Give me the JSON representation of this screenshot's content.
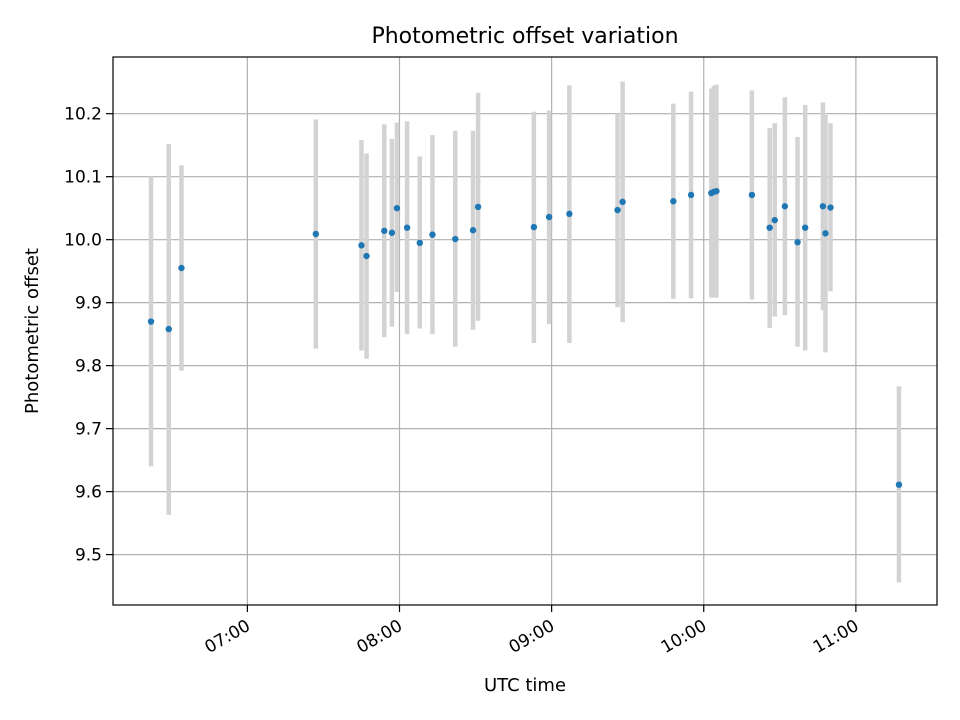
{
  "chart_data": {
    "type": "scatter",
    "title": "Photometric offset variation",
    "xlabel": "UTC time",
    "ylabel": "Photometric offset",
    "x_unit": "UTC time (HH:MM)",
    "xlim": [
      "06:07",
      "11:32"
    ],
    "ylim": [
      9.42,
      10.29
    ],
    "grid": true,
    "x_ticks": [
      "07:00",
      "08:00",
      "09:00",
      "10:00",
      "11:00"
    ],
    "y_ticks": [
      "9.5",
      "9.6",
      "9.7",
      "9.8",
      "9.9",
      "10.0",
      "10.1",
      "10.2"
    ],
    "colors": {
      "points": "#1f77b4",
      "errorbars": "#d3d3d3",
      "grid": "#b0b0b0"
    },
    "points": [
      {
        "x": "06:22",
        "y": 9.87,
        "ylow": 9.64,
        "yhigh": 10.1
      },
      {
        "x": "06:29",
        "y": 9.858,
        "ylow": 9.563,
        "yhigh": 10.152
      },
      {
        "x": "06:34",
        "y": 9.955,
        "ylow": 9.792,
        "yhigh": 10.118
      },
      {
        "x": "07:27",
        "y": 10.009,
        "ylow": 9.827,
        "yhigh": 10.191
      },
      {
        "x": "07:45",
        "y": 9.991,
        "ylow": 9.824,
        "yhigh": 10.158
      },
      {
        "x": "07:47",
        "y": 9.974,
        "ylow": 9.811,
        "yhigh": 10.137
      },
      {
        "x": "07:54",
        "y": 10.014,
        "ylow": 9.845,
        "yhigh": 10.183
      },
      {
        "x": "07:57",
        "y": 10.011,
        "ylow": 9.862,
        "yhigh": 10.16
      },
      {
        "x": "07:59",
        "y": 10.05,
        "ylow": 9.917,
        "yhigh": 10.186
      },
      {
        "x": "08:03",
        "y": 10.019,
        "ylow": 9.85,
        "yhigh": 10.188
      },
      {
        "x": "08:08",
        "y": 9.995,
        "ylow": 9.859,
        "yhigh": 10.132
      },
      {
        "x": "08:13",
        "y": 10.008,
        "ylow": 9.85,
        "yhigh": 10.166
      },
      {
        "x": "08:22",
        "y": 10.001,
        "ylow": 9.83,
        "yhigh": 10.173
      },
      {
        "x": "08:29",
        "y": 10.015,
        "ylow": 9.857,
        "yhigh": 10.173
      },
      {
        "x": "08:31",
        "y": 10.052,
        "ylow": 9.871,
        "yhigh": 10.233
      },
      {
        "x": "08:53",
        "y": 10.02,
        "ylow": 9.836,
        "yhigh": 10.203
      },
      {
        "x": "08:59",
        "y": 10.036,
        "ylow": 9.866,
        "yhigh": 10.205
      },
      {
        "x": "09:07",
        "y": 10.041,
        "ylow": 9.836,
        "yhigh": 10.245
      },
      {
        "x": "09:26",
        "y": 10.047,
        "ylow": 9.893,
        "yhigh": 10.2
      },
      {
        "x": "09:28",
        "y": 10.06,
        "ylow": 9.869,
        "yhigh": 10.251
      },
      {
        "x": "09:48",
        "y": 10.061,
        "ylow": 9.906,
        "yhigh": 10.216
      },
      {
        "x": "09:55",
        "y": 10.071,
        "ylow": 9.907,
        "yhigh": 10.235
      },
      {
        "x": "10:03",
        "y": 10.074,
        "ylow": 9.908,
        "yhigh": 10.24
      },
      {
        "x": "10:04",
        "y": 10.076,
        "ylow": 9.908,
        "yhigh": 10.244
      },
      {
        "x": "10:05",
        "y": 10.077,
        "ylow": 9.908,
        "yhigh": 10.246
      },
      {
        "x": "10:19",
        "y": 10.071,
        "ylow": 9.905,
        "yhigh": 10.237
      },
      {
        "x": "10:26",
        "y": 10.019,
        "ylow": 9.86,
        "yhigh": 10.177
      },
      {
        "x": "10:28",
        "y": 10.031,
        "ylow": 9.878,
        "yhigh": 10.185
      },
      {
        "x": "10:32",
        "y": 10.053,
        "ylow": 9.88,
        "yhigh": 10.226
      },
      {
        "x": "10:37",
        "y": 9.996,
        "ylow": 9.83,
        "yhigh": 10.163
      },
      {
        "x": "10:40",
        "y": 10.019,
        "ylow": 9.824,
        "yhigh": 10.214
      },
      {
        "x": "10:47",
        "y": 10.053,
        "ylow": 9.888,
        "yhigh": 10.218
      },
      {
        "x": "10:48",
        "y": 10.01,
        "ylow": 9.821,
        "yhigh": 10.198
      },
      {
        "x": "10:50",
        "y": 10.051,
        "ylow": 9.918,
        "yhigh": 10.185
      },
      {
        "x": "11:17",
        "y": 9.611,
        "ylow": 9.456,
        "yhigh": 9.767
      }
    ]
  }
}
